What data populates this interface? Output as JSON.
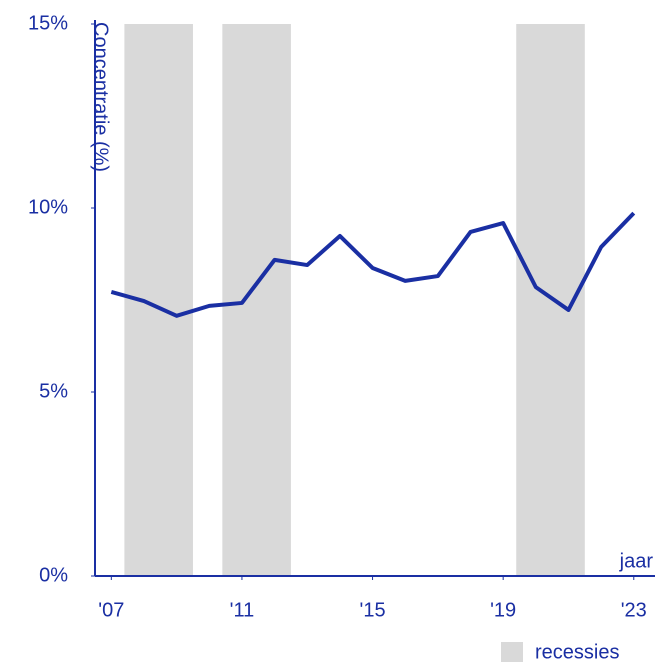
{
  "chart_data": {
    "type": "line",
    "y_label": "Concentratie (%)",
    "x_label": "jaar",
    "x": [
      2007,
      2008,
      2009,
      2010,
      2011,
      2012,
      2013,
      2014,
      2015,
      2016,
      2017,
      2018,
      2019,
      2020,
      2021,
      2022,
      2023
    ],
    "series": [
      {
        "name": "Concentratie",
        "color": "#1a2fa3",
        "values": [
          7.72,
          7.47,
          7.07,
          7.34,
          7.42,
          8.59,
          8.45,
          9.24,
          8.37,
          8.02,
          8.15,
          9.35,
          9.59,
          7.85,
          7.23,
          8.94,
          9.86
        ]
      }
    ],
    "recessions": {
      "name": "recessies",
      "color": "#d9d9d9",
      "spans": [
        [
          2007.4,
          2009.5
        ],
        [
          2010.4,
          2012.5
        ],
        [
          2019.4,
          2021.5
        ]
      ]
    },
    "xlim": [
      2006.5,
      2023.65
    ],
    "xticks": [
      {
        "value": 2007,
        "label": "'07"
      },
      {
        "value": 2011,
        "label": "'11"
      },
      {
        "value": 2015,
        "label": "'15"
      },
      {
        "value": 2019,
        "label": "'19"
      },
      {
        "value": 2023,
        "label": "'23"
      }
    ],
    "ylim": [
      0,
      15
    ],
    "yticks": [
      {
        "value": 0,
        "label": "0%"
      },
      {
        "value": 5,
        "label": "5%"
      },
      {
        "value": 10,
        "label": "10%"
      },
      {
        "value": 15,
        "label": "15%"
      }
    ],
    "axis_color": "#1a2fa3"
  }
}
